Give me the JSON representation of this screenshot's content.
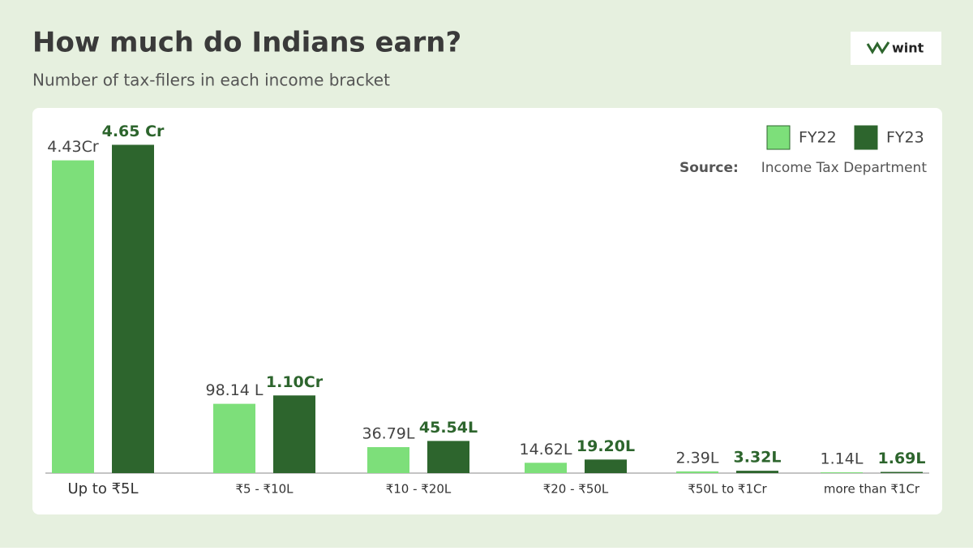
{
  "chart_data": {
    "type": "bar",
    "title": "How much do Indians earn?",
    "subtitle": "Number of tax-filers in each income bracket",
    "brand": "wint",
    "source_label": "Source:",
    "source": "Income Tax Department",
    "categories": [
      "Up to ₹5L",
      "₹5 - ₹10L",
      "₹10 - ₹20L",
      "₹20 - ₹50L",
      "₹50L to ₹1Cr",
      "more than ₹1Cr"
    ],
    "series": [
      {
        "name": "FY22",
        "color": "#7ddf7a",
        "values": [
          443,
          98.14,
          36.79,
          14.62,
          2.39,
          1.14
        ],
        "value_labels": [
          "4.43Cr",
          "98.14 L",
          "36.79L",
          "14.62L",
          "2.39L",
          "1.14L"
        ]
      },
      {
        "name": "FY23",
        "color": "#2d652d",
        "values": [
          465,
          110,
          45.54,
          19.2,
          3.32,
          1.69
        ],
        "value_labels": [
          "4.65 Cr",
          "1.10Cr",
          "45.54L",
          "19.20L",
          "3.32L",
          "1.69L"
        ]
      }
    ],
    "ylim": [
      0,
      500
    ]
  }
}
